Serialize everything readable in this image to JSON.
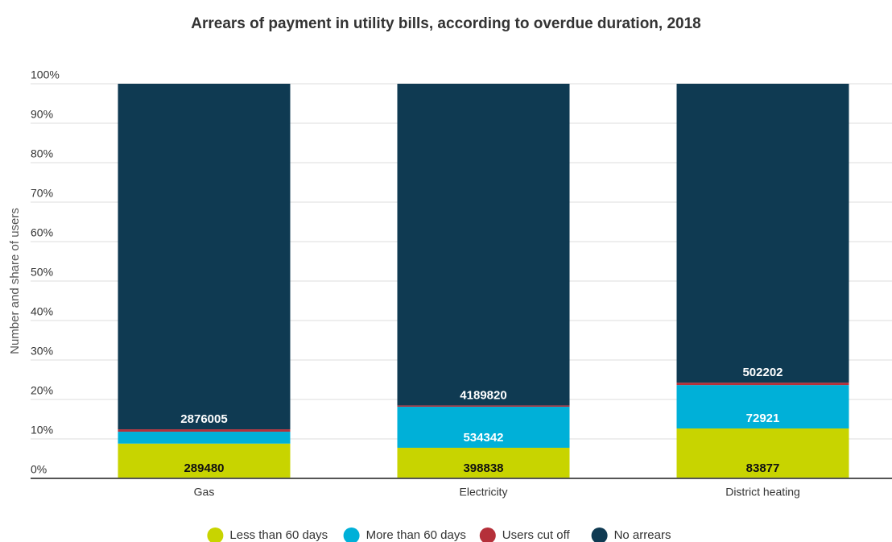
{
  "chart_data": {
    "type": "bar",
    "stacked": "percent",
    "title": "Arrears of payment in utility bills, according to overdue duration, 2018",
    "y_label": "Number and share of users",
    "categories": [
      "Gas",
      "Electricity",
      "District heating"
    ],
    "series": [
      {
        "name": "Less than 60 days",
        "color": "#c8d400",
        "values": [
          289480,
          398838,
          83877
        ],
        "value_labels": [
          "289480",
          "398838",
          "83877"
        ]
      },
      {
        "name": "More than 60 days",
        "color": "#00b0d8",
        "values": [
          99000,
          534342,
          72921
        ],
        "value_labels": [
          null,
          "534342",
          "72921"
        ]
      },
      {
        "name": "Users cut off",
        "color": "#b5303a",
        "values": [
          20000,
          17000,
          4000
        ],
        "value_labels": [
          null,
          null,
          null
        ]
      },
      {
        "name": "No arrears",
        "color": "#0f3a52",
        "values": [
          2876005,
          4189820,
          502202
        ],
        "value_labels": [
          "2876005",
          "4189820",
          "502202"
        ]
      }
    ],
    "ylim": [
      0,
      100
    ],
    "yticks": [
      {
        "value": 0,
        "label": "0%"
      },
      {
        "value": 10,
        "label": "10%"
      },
      {
        "value": 20,
        "label": "20%"
      },
      {
        "value": 30,
        "label": "30%"
      },
      {
        "value": 40,
        "label": "40%"
      },
      {
        "value": 50,
        "label": "50%"
      },
      {
        "value": 60,
        "label": "60%"
      },
      {
        "value": 70,
        "label": "70%"
      },
      {
        "value": 80,
        "label": "80%"
      },
      {
        "value": 90,
        "label": "90%"
      },
      {
        "value": 100,
        "label": "100%"
      }
    ],
    "grid": true,
    "legend": "bottom"
  }
}
